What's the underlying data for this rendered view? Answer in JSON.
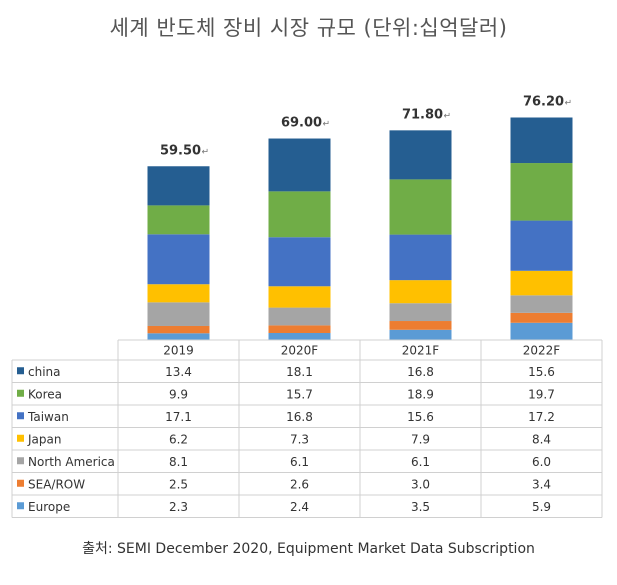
{
  "title": "세계 반도체 장비 시장 규모 (단위:십억달러)",
  "source": "출처: SEMI December 2020, Equipment Market Data Subscription",
  "chart_data": {
    "type": "bar",
    "stacked": true,
    "title": "세계 반도체 장비 시장 규모 (단위:십억달러)",
    "categories": [
      "2019",
      "2020F",
      "2021F",
      "2022F"
    ],
    "totals": [
      "59.50",
      "69.00",
      "71.80",
      "76.20"
    ],
    "series": [
      {
        "name": "china",
        "color": "#255e91",
        "values": [
          "13.4",
          "18.1",
          "16.8",
          "15.6"
        ]
      },
      {
        "name": "Korea",
        "color": "#70ad47",
        "values": [
          "9.9",
          "15.7",
          "18.9",
          "19.7"
        ]
      },
      {
        "name": "Taiwan",
        "color": "#4472c4",
        "values": [
          "17.1",
          "16.8",
          "15.6",
          "17.2"
        ]
      },
      {
        "name": "Japan",
        "color": "#ffc000",
        "values": [
          "6.2",
          "7.3",
          "7.9",
          "8.4"
        ]
      },
      {
        "name": "North America",
        "color": "#a5a5a5",
        "values": [
          "8.1",
          "6.1",
          "6.1",
          "6.0"
        ]
      },
      {
        "name": "SEA/ROW",
        "color": "#ed7d31",
        "values": [
          "2.5",
          "2.6",
          "3.0",
          "3.4"
        ]
      },
      {
        "name": "Europe",
        "color": "#5b9bd5",
        "values": [
          "2.3",
          "2.4",
          "3.5",
          "5.9"
        ]
      }
    ]
  }
}
